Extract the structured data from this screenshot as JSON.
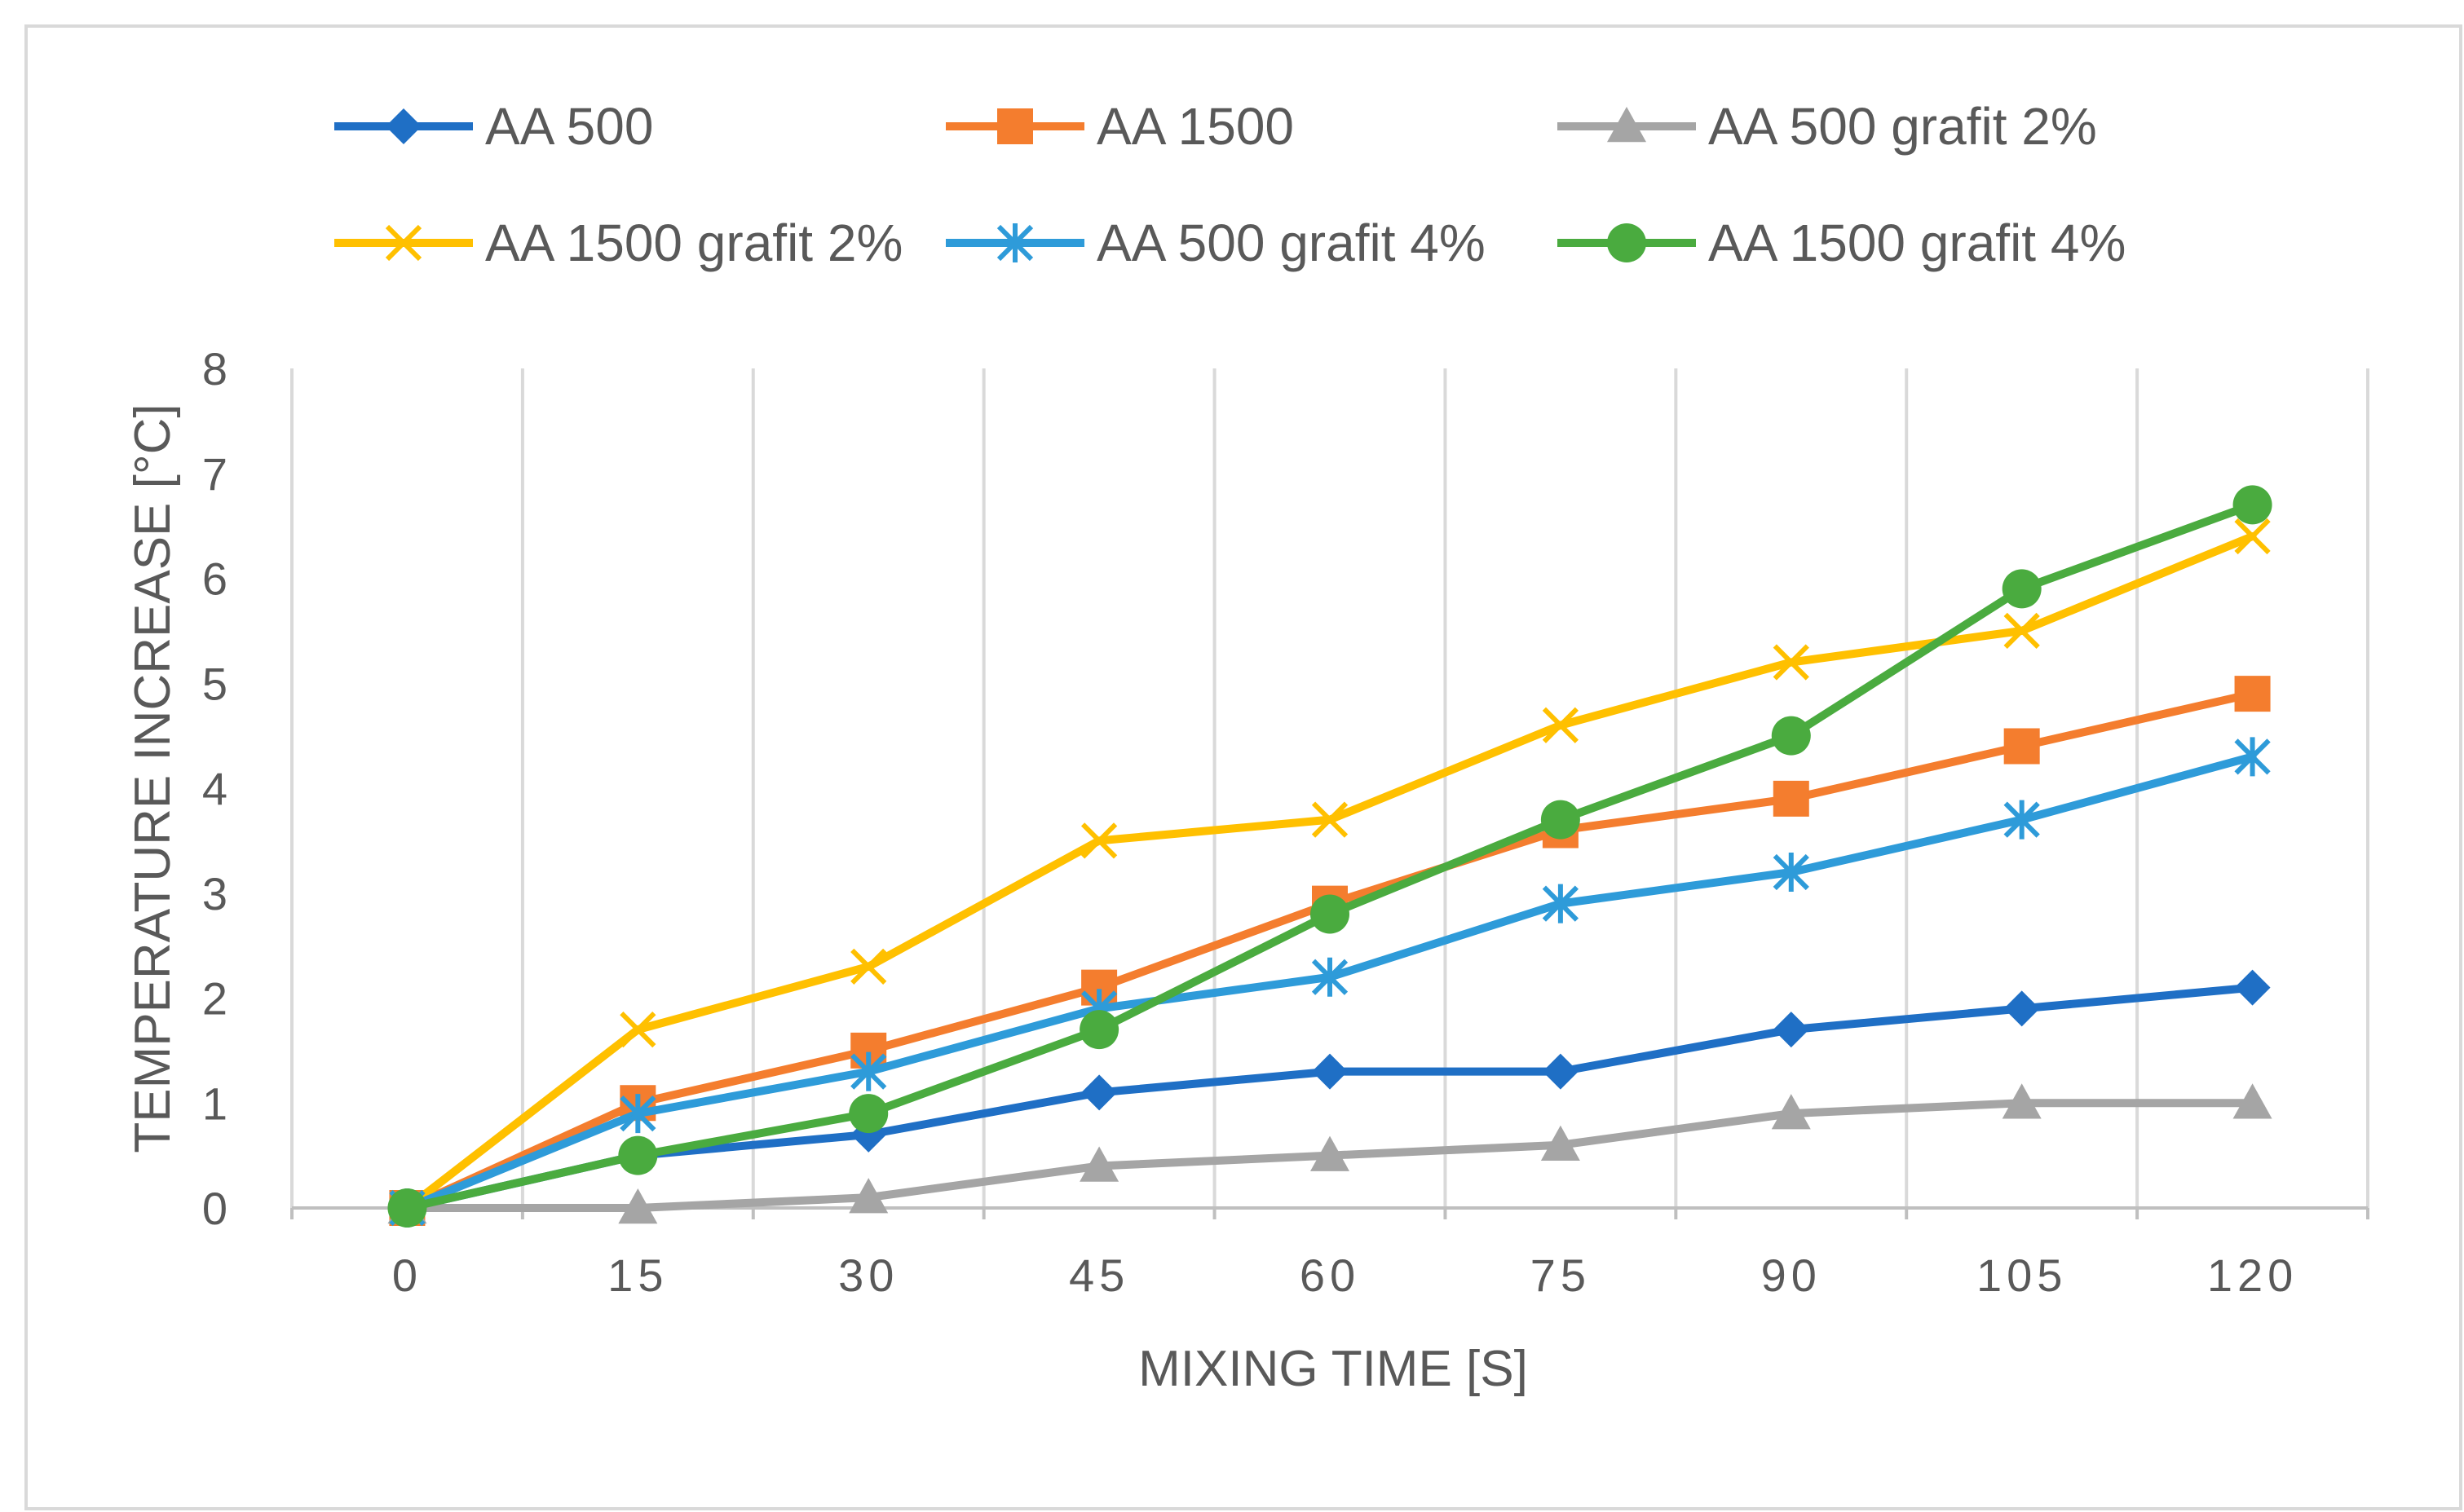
{
  "chart_data": {
    "type": "line",
    "title": "",
    "xlabel": "MIXING TIME [S]",
    "ylabel": "TEMPERATURE INCREASE [°C]",
    "x": [
      0,
      15,
      30,
      45,
      60,
      75,
      90,
      105,
      120
    ],
    "x_tick_labels": [
      "0",
      "15",
      "30",
      "45",
      "60",
      "75",
      "90",
      "105",
      "120"
    ],
    "y_ticks": [
      0,
      1,
      2,
      3,
      4,
      5,
      6,
      7,
      8
    ],
    "ylim": [
      0,
      8
    ],
    "grid": "vertical",
    "legend_position": "top",
    "series": [
      {
        "name": "AA 500",
        "color": "#1f6fc5",
        "marker": "diamond",
        "values": [
          0,
          0.5,
          0.7,
          1.1,
          1.3,
          1.3,
          1.7,
          1.9,
          2.1
        ]
      },
      {
        "name": "AA 1500",
        "color": "#f47d2e",
        "marker": "square",
        "values": [
          0,
          1.0,
          1.5,
          2.1,
          2.9,
          3.6,
          3.9,
          4.4,
          4.9
        ]
      },
      {
        "name": "AA 500 grafit 2%",
        "color": "#a5a5a5",
        "marker": "triangle",
        "values": [
          0,
          0,
          0.1,
          0.4,
          0.5,
          0.6,
          0.9,
          1.0,
          1.0
        ]
      },
      {
        "name": "AA 1500 grafit 2%",
        "color": "#ffc000",
        "marker": "x",
        "values": [
          0,
          1.7,
          2.3,
          3.5,
          3.7,
          4.6,
          5.2,
          5.5,
          6.4
        ]
      },
      {
        "name": "AA 500 grafit 4%",
        "color": "#2e9bd9",
        "marker": "star",
        "values": [
          0,
          0.9,
          1.3,
          1.9,
          2.2,
          2.9,
          3.2,
          3.7,
          4.3
        ]
      },
      {
        "name": "AA 1500 grafit 4%",
        "color": "#4aab3f",
        "marker": "circle",
        "values": [
          0,
          0.5,
          0.9,
          1.7,
          2.8,
          3.7,
          4.5,
          5.9,
          6.7
        ]
      }
    ]
  },
  "colors": {
    "grid": "#d9d9d9",
    "axis": "#bfbfbf",
    "text": "#595959"
  }
}
